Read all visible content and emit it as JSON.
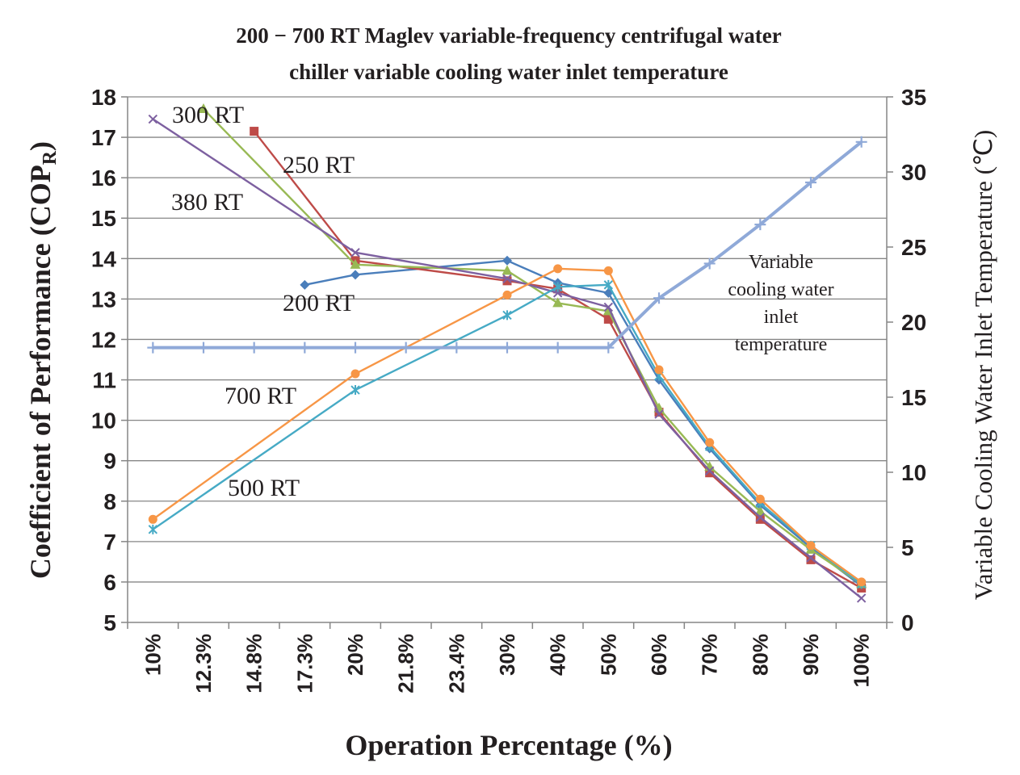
{
  "chart_data": {
    "type": "line",
    "title_lines": [
      "200 − 700 RT Maglev variable-frequency centrifugal water",
      "chiller variable cooling water inlet temperature"
    ],
    "xlabel": "Operation Percentage (%)",
    "ylabel_prefix": "Coefficient of Performance (COP",
    "ylabel_sub": "R",
    "ylabel_suffix": ")",
    "y2label": "Variable Cooling Water Inlet Temperature (℃)",
    "categories": [
      "10%",
      "12.3%",
      "14.8%",
      "17.3%",
      "20%",
      "21.8%",
      "23.4%",
      "30%",
      "40%",
      "50%",
      "60%",
      "70%",
      "80%",
      "90%",
      "100%"
    ],
    "ylim": [
      5,
      18
    ],
    "y_ticks": [
      5,
      6,
      7,
      8,
      9,
      10,
      11,
      12,
      13,
      14,
      15,
      16,
      17,
      18
    ],
    "y2lim": [
      0,
      35
    ],
    "y2_ticks": [
      0,
      5,
      10,
      15,
      20,
      25,
      30,
      35
    ],
    "grid": true,
    "series": [
      {
        "label": "200 RT",
        "color": "#4a7ebb",
        "marker": "diamond",
        "axis": "left",
        "values": [
          null,
          null,
          null,
          13.35,
          13.6,
          null,
          null,
          13.95,
          13.4,
          13.15,
          11.0,
          9.3,
          7.9,
          6.85,
          5.9
        ]
      },
      {
        "label": "250 RT",
        "color": "#be4b48",
        "marker": "square",
        "axis": "left",
        "values": [
          null,
          null,
          17.15,
          null,
          13.95,
          null,
          null,
          13.45,
          13.25,
          12.5,
          10.2,
          8.7,
          7.55,
          6.55,
          5.85
        ]
      },
      {
        "label": "300 RT",
        "color": "#98b954",
        "marker": "triangle",
        "axis": "left",
        "values": [
          null,
          17.7,
          null,
          null,
          13.85,
          null,
          null,
          13.7,
          12.9,
          12.7,
          10.3,
          8.85,
          7.75,
          6.8,
          5.95
        ]
      },
      {
        "label": "380 RT",
        "color": "#7d60a0",
        "marker": "x",
        "axis": "left",
        "values": [
          17.45,
          null,
          null,
          null,
          14.15,
          null,
          null,
          13.5,
          13.15,
          12.8,
          10.15,
          8.75,
          7.6,
          6.6,
          5.6
        ]
      },
      {
        "label": "500 RT",
        "color": "#46aac5",
        "marker": "star",
        "axis": "left",
        "values": [
          7.3,
          null,
          null,
          null,
          10.75,
          null,
          null,
          12.6,
          13.3,
          13.35,
          11.1,
          9.35,
          7.95,
          6.9,
          5.95
        ]
      },
      {
        "label": "700 RT",
        "color": "#f79646",
        "marker": "circle",
        "axis": "left",
        "values": [
          7.55,
          null,
          null,
          null,
          11.15,
          null,
          null,
          13.1,
          13.75,
          13.7,
          11.25,
          9.45,
          8.05,
          6.9,
          6.0
        ]
      },
      {
        "label": "Variable cooling water inlet temperature",
        "color": "#8fa9d8",
        "marker": "plus",
        "axis": "right",
        "values": [
          18.3,
          18.3,
          18.3,
          18.3,
          18.3,
          18.3,
          18.3,
          18.3,
          18.3,
          18.3,
          21.6,
          23.9,
          26.5,
          29.3,
          32.0
        ]
      }
    ],
    "annotations": [
      {
        "text": "300 RT"
      },
      {
        "text": "250 RT"
      },
      {
        "text": "380 RT"
      },
      {
        "text": "200 RT"
      },
      {
        "text": "700 RT"
      },
      {
        "text": "500 RT"
      },
      {
        "lines": [
          "Variable",
          "cooling water",
          "inlet",
          "temperature"
        ]
      }
    ]
  }
}
